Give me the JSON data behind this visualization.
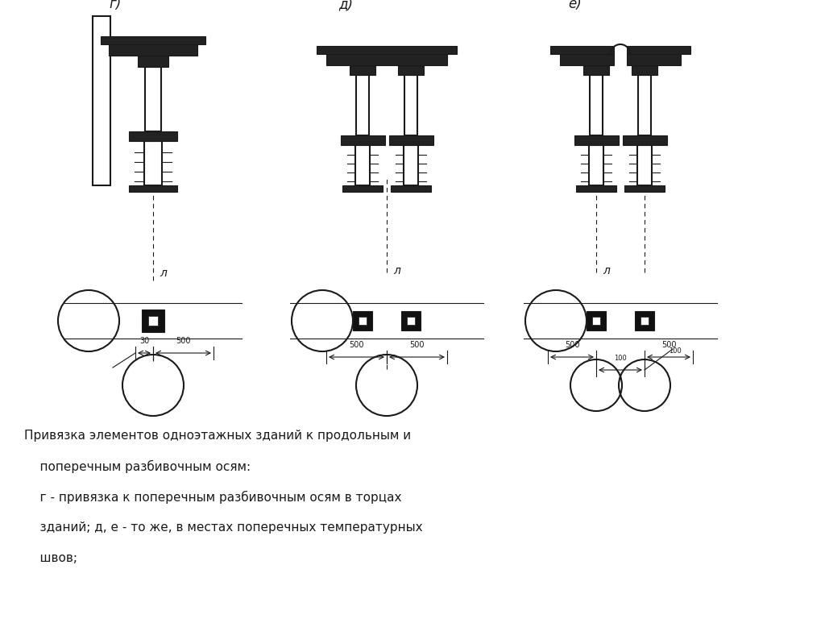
{
  "bg_color": "#ffffff",
  "lc": "#1a1a1a",
  "label_g": "г)",
  "label_d": "д)",
  "label_e": "е)",
  "caption_lines": [
    "Привязка элементов одноэтажных зданий к продольным и",
    "    поперечным разбивочным осям:",
    "    г - привязка к поперечным разбивочным осям в торцах",
    "    зданий; д, е - то же, в местах поперечных температурных",
    "    швов;"
  ],
  "dim_30": "30",
  "dim_100": "100",
  "dim_500": "500",
  "label_l": "л",
  "font_label": 12,
  "font_caption": 11,
  "font_dim": 8,
  "font_l": 10
}
